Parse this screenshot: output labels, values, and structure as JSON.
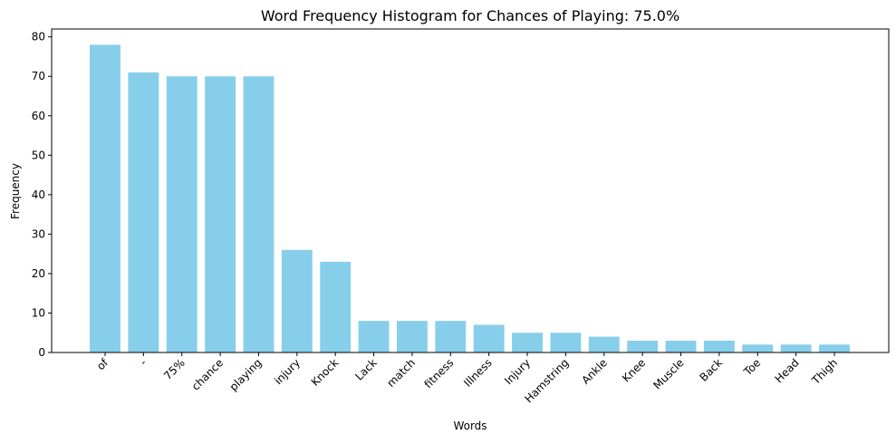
{
  "chart_data": {
    "type": "bar",
    "title": "Word Frequency Histogram for Chances of Playing: 75.0%",
    "xlabel": "Words",
    "ylabel": "Frequency",
    "categories": [
      "of",
      "-",
      "75%",
      "chance",
      "playing",
      "injury",
      "Knock",
      "Lack",
      "match",
      "fitness",
      "Illness",
      "Injury",
      "Hamstring",
      "Ankle",
      "Knee",
      "Muscle",
      "Back",
      "Toe",
      "Head",
      "Thigh"
    ],
    "values": [
      78,
      71,
      70,
      70,
      70,
      26,
      23,
      8,
      8,
      8,
      7,
      5,
      5,
      4,
      3,
      3,
      3,
      2,
      2,
      2
    ],
    "ylim": [
      0,
      82
    ],
    "yticks": [
      0,
      10,
      20,
      30,
      40,
      50,
      60,
      70,
      80
    ],
    "bar_color": "#87CEEB",
    "grid": false,
    "legend": "none"
  }
}
